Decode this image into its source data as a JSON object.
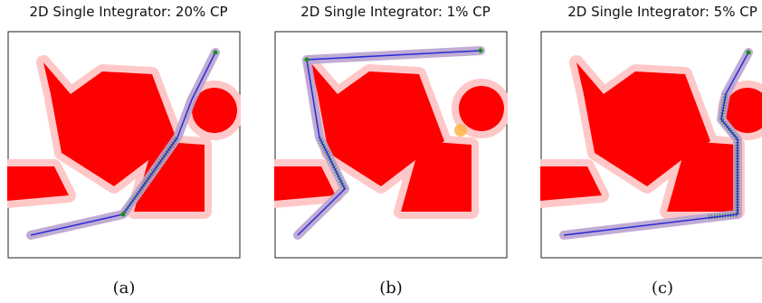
{
  "panels": [
    {
      "title": "2D Single Integrator: 20% CP",
      "caption": "(a)"
    },
    {
      "title": "2D Single Integrator: 1% CP",
      "caption": "(b)"
    },
    {
      "title": "2D Single Integrator: 5% CP",
      "caption": "(c)"
    }
  ],
  "colors": {
    "obstacle": "#ff0000",
    "halo": "#ffc8c8",
    "path": "#2b2bd6",
    "tube": "#b9a3cf",
    "cone": "#2e8b2e",
    "goal": "#1a8f1a",
    "uncertain": "#ffb347"
  }
}
